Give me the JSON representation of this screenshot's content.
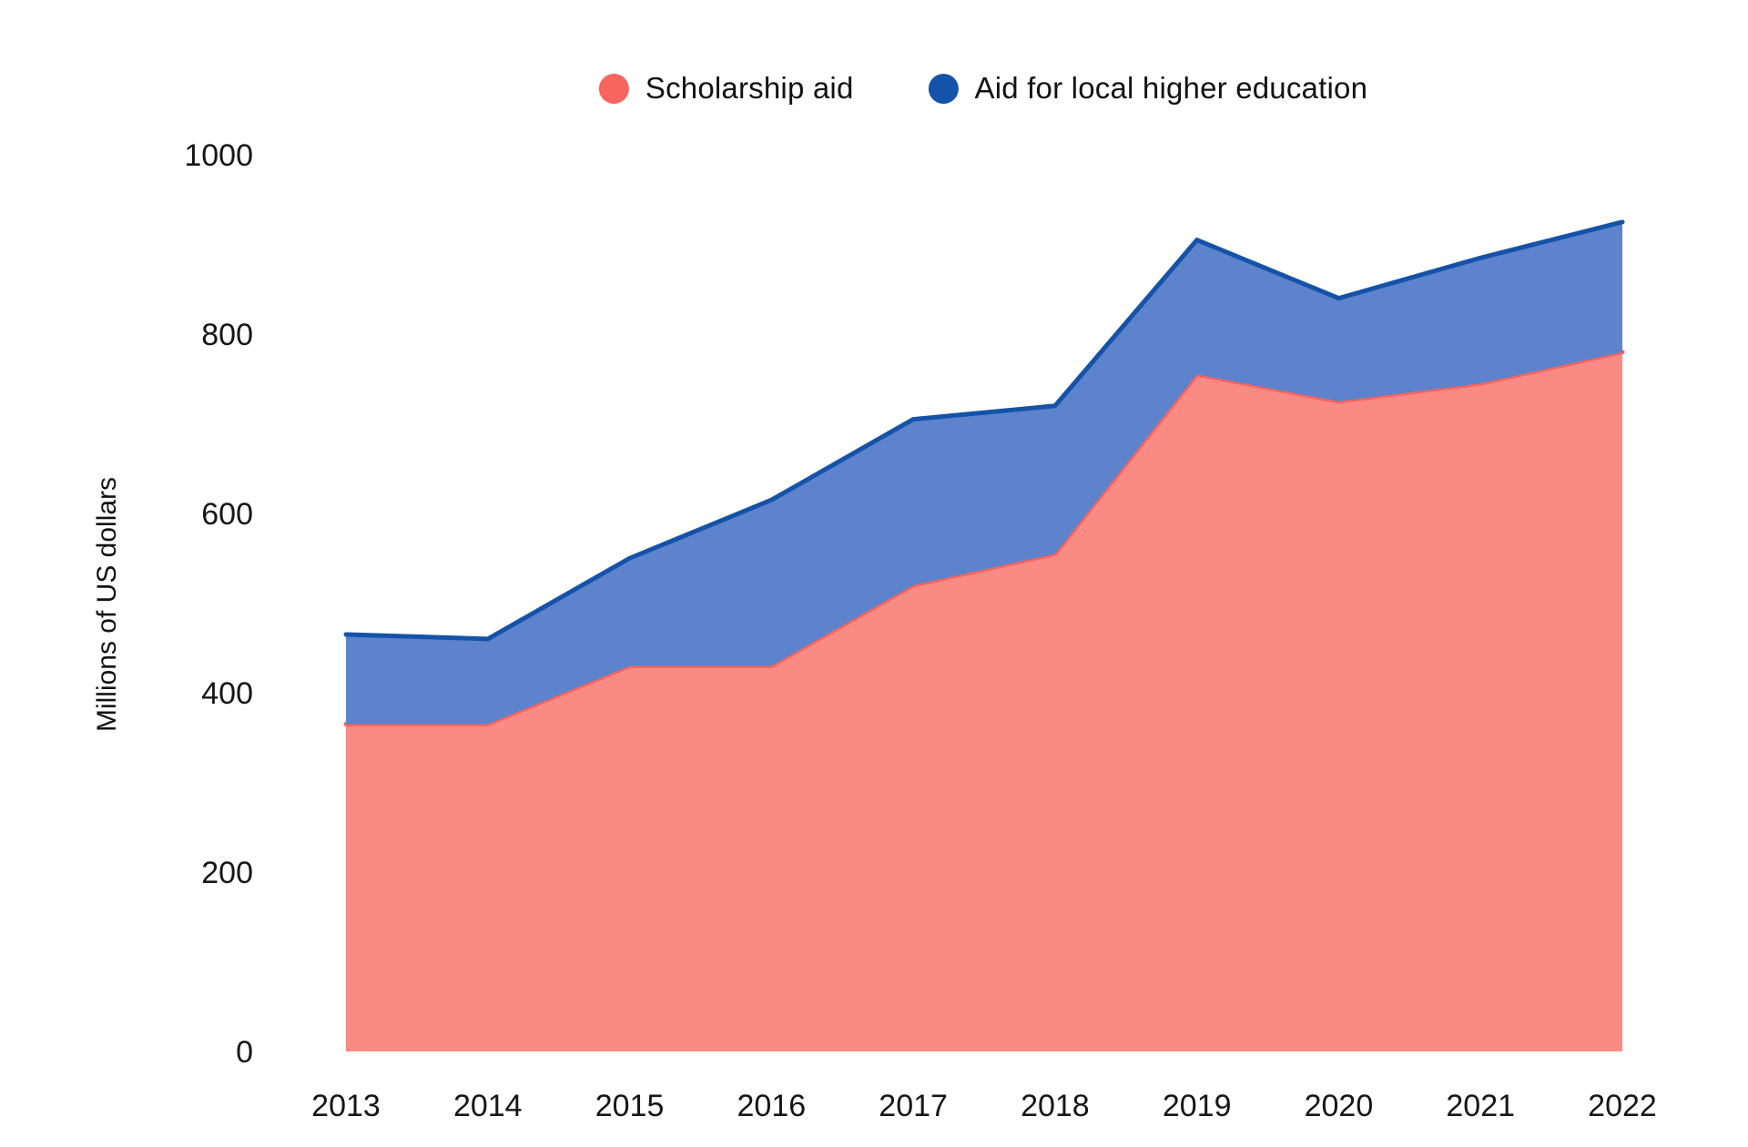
{
  "chart_data": {
    "type": "area",
    "stacked": true,
    "title": "",
    "ylabel": "Millions of US dollars",
    "xlabel": "",
    "ylim": [
      0,
      1000
    ],
    "yticks": [
      0,
      200,
      400,
      600,
      800,
      1000
    ],
    "grid": false,
    "legend_position": "top",
    "categories": [
      "2013",
      "2014",
      "2015",
      "2016",
      "2017",
      "2018",
      "2019",
      "2020",
      "2021",
      "2022"
    ],
    "series": [
      {
        "name": "Scholarship aid",
        "fill_color": "#FA8A84",
        "line_color": "#F8645E",
        "dot_color": "#F8645E",
        "values": [
          365,
          365,
          430,
          430,
          520,
          555,
          755,
          725,
          745,
          780
        ]
      },
      {
        "name": "Aid for local higher education",
        "fill_color": "#5C83CB",
        "line_color": "#1552A9",
        "dot_color": "#1552A9",
        "values": [
          100,
          95,
          120,
          185,
          185,
          165,
          150,
          115,
          140,
          145
        ]
      }
    ],
    "totals": [
      465,
      460,
      550,
      615,
      705,
      720,
      905,
      840,
      885,
      925
    ],
    "colors": {
      "background": "#FFFFFF",
      "text": "#161616"
    }
  }
}
